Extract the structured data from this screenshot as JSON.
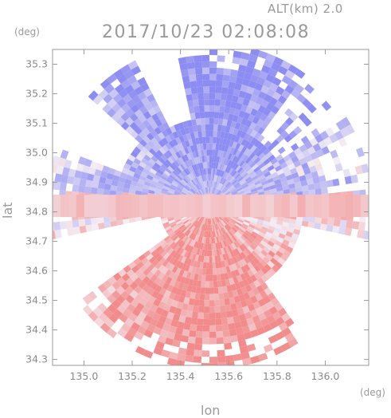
{
  "header": {
    "altitude_label": "ALT(km) 2.0",
    "timestamp": "2017/10/23 02:08:08"
  },
  "chart_data": {
    "type": "heatmap",
    "title": "2017/10/23 02:08:08",
    "subtitle": "ALT(km) 2.0",
    "xlabel": "lon",
    "ylabel": "lat",
    "x_unit": "(deg)",
    "y_unit": "(deg)",
    "xlim": [
      134.87,
      136.18
    ],
    "ylim": [
      34.28,
      35.35
    ],
    "x_ticks": [
      "135.0",
      "135.2",
      "135.4",
      "135.6",
      "135.8",
      "136.0"
    ],
    "y_ticks": [
      "34.3",
      "34.4",
      "34.5",
      "34.6",
      "34.7",
      "34.8",
      "34.9",
      "35.0",
      "35.1",
      "35.2",
      "35.3"
    ],
    "radar_center": {
      "lon": 135.52,
      "lat": 34.82
    },
    "colors": {
      "positive": "#f28c8c",
      "negative": "#8c8cf2",
      "neutral": "#f4eef4",
      "axis": "#9a9a9a"
    },
    "grid": false
  }
}
